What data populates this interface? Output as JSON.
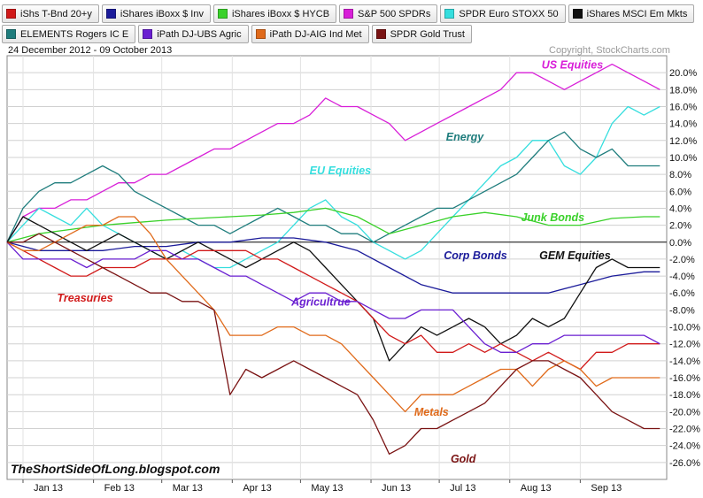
{
  "legend": [
    {
      "label": "iShs T-Bnd 20+y",
      "color": "#d11a1a"
    },
    {
      "label": "iShares iBoxx $ Inv",
      "color": "#1b1b9a"
    },
    {
      "label": "iShares iBoxx $ HYCB",
      "color": "#3ad12a"
    },
    {
      "label": "S&P 500 SPDRs",
      "color": "#d81fd8"
    },
    {
      "label": "SPDR Euro STOXX 50",
      "color": "#35dede"
    },
    {
      "label": "iShares MSCI Em Mkts",
      "color": "#111111"
    },
    {
      "label": "ELEMENTS Rogers IC E",
      "color": "#1f7d7d"
    },
    {
      "label": "iPath DJ-UBS Agric",
      "color": "#6a1fd1"
    },
    {
      "label": "iPath DJ-AIG Ind Met",
      "color": "#e06a1a"
    },
    {
      "label": "SPDR Gold Trust",
      "color": "#7a1313"
    }
  ],
  "date_range": "24 December 2012 - 09 October 2013",
  "copyright": "Copyright, StockCharts.com",
  "watermark": "TheShortSideOfLong.blogspot.com",
  "chart_data": {
    "type": "line",
    "x_tick_labels": [
      "Jan 13",
      "Feb 13",
      "Mar 13",
      "Apr 13",
      "May 13",
      "Jun 13",
      "Jul 13",
      "Aug 13",
      "Sep 13"
    ],
    "x_tick_positions": [
      7,
      38,
      68,
      99,
      129,
      160,
      190,
      221,
      252
    ],
    "x_range": [
      0,
      290
    ],
    "y_tick_labels": [
      "20.0%",
      "18.0%",
      "16.0%",
      "14.0%",
      "12.0%",
      "10.0%",
      "8.0%",
      "6.0%",
      "4.0%",
      "2.0%",
      "0.0%",
      "-2.0%",
      "-4.0%",
      "-6.0%",
      "-8.0%",
      "-10.0%",
      "-12.0%",
      "-14.0%",
      "-16.0%",
      "-18.0%",
      "-20.0%",
      "-22.0%",
      "-24.0%",
      "-26.0%"
    ],
    "ylim": [
      -28,
      22
    ],
    "grid": true,
    "annotations": [
      {
        "text": "US Equities",
        "color": "#d81fd8",
        "x": 235,
        "y": 20.5
      },
      {
        "text": "Energy",
        "color": "#1f7d7d",
        "x": 193,
        "y": 12
      },
      {
        "text": "EU Equities",
        "color": "#35dede",
        "x": 133,
        "y": 8
      },
      {
        "text": "Junk Bonds",
        "color": "#3ad12a",
        "x": 226,
        "y": 2.5
      },
      {
        "text": "Corp Bonds",
        "color": "#1b1b9a",
        "x": 192,
        "y": -2
      },
      {
        "text": "GEM Equities",
        "color": "#111111",
        "x": 234,
        "y": -2
      },
      {
        "text": "Treasuries",
        "color": "#d11a1a",
        "x": 22,
        "y": -7
      },
      {
        "text": "Agricultrue",
        "color": "#6a1fd1",
        "x": 125,
        "y": -7.5
      },
      {
        "text": "Metals",
        "color": "#e06a1a",
        "x": 179,
        "y": -20.5
      },
      {
        "text": "Gold",
        "color": "#7a1313",
        "x": 195,
        "y": -26
      }
    ],
    "series": [
      {
        "name": "S&P 500 SPDRs",
        "color": "#d81fd8",
        "x": [
          0,
          7,
          14,
          21,
          28,
          35,
          42,
          49,
          56,
          63,
          70,
          77,
          84,
          91,
          98,
          105,
          112,
          119,
          126,
          133,
          140,
          147,
          154,
          161,
          168,
          175,
          182,
          189,
          196,
          203,
          210,
          217,
          224,
          231,
          238,
          245,
          252,
          259,
          266,
          273,
          280,
          287
        ],
        "y": [
          0,
          3,
          4,
          4,
          5,
          5,
          6,
          7,
          7,
          8,
          8,
          9,
          10,
          11,
          11,
          12,
          13,
          14,
          14,
          15,
          17,
          16,
          16,
          15,
          14,
          12,
          13,
          14,
          15,
          16,
          17,
          18,
          20,
          20,
          19,
          18,
          19,
          20,
          21,
          20,
          19,
          18
        ]
      },
      {
        "name": "SPDR Euro STOXX 50",
        "color": "#35dede",
        "x": [
          0,
          7,
          14,
          21,
          28,
          35,
          42,
          49,
          56,
          63,
          70,
          77,
          84,
          91,
          98,
          105,
          112,
          119,
          126,
          133,
          140,
          147,
          154,
          161,
          168,
          175,
          182,
          189,
          196,
          203,
          210,
          217,
          224,
          231,
          238,
          245,
          252,
          259,
          266,
          273,
          280,
          287
        ],
        "y": [
          0,
          2,
          4,
          3,
          2,
          4,
          2,
          1,
          0,
          -1,
          -2,
          -1,
          -2,
          -3,
          -3,
          -2,
          -1,
          0,
          2,
          4,
          5,
          3,
          2,
          0,
          -1,
          -2,
          -1,
          1,
          3,
          5,
          7,
          9,
          10,
          12,
          12,
          9,
          8,
          10,
          14,
          16,
          15,
          16
        ]
      },
      {
        "name": "ELEMENTS Rogers IC E",
        "color": "#1f7d7d",
        "x": [
          0,
          7,
          14,
          21,
          28,
          35,
          42,
          49,
          56,
          63,
          70,
          77,
          84,
          91,
          98,
          105,
          112,
          119,
          126,
          133,
          140,
          147,
          154,
          161,
          168,
          175,
          182,
          189,
          196,
          203,
          210,
          217,
          224,
          231,
          238,
          245,
          252,
          259,
          266,
          273,
          280,
          287
        ],
        "y": [
          0,
          4,
          6,
          7,
          7,
          8,
          9,
          8,
          6,
          5,
          4,
          3,
          2,
          2,
          1,
          2,
          3,
          4,
          3,
          2,
          2,
          1,
          1,
          0,
          1,
          2,
          3,
          4,
          4,
          5,
          6,
          7,
          8,
          10,
          12,
          13,
          11,
          10,
          11,
          9,
          9,
          9
        ]
      },
      {
        "name": "iShares iBoxx $ HYCB",
        "color": "#3ad12a",
        "x": [
          0,
          14,
          28,
          42,
          56,
          70,
          84,
          98,
          112,
          126,
          140,
          154,
          168,
          182,
          196,
          210,
          224,
          238,
          252,
          266,
          280,
          287
        ],
        "y": [
          0,
          1,
          1.5,
          2,
          2.3,
          2.6,
          2.8,
          3,
          3.2,
          3.5,
          4,
          3,
          1,
          2,
          3,
          3.5,
          3,
          2,
          2,
          2.8,
          3,
          3
        ]
      },
      {
        "name": "iShares iBoxx $ Inv",
        "color": "#1b1b9a",
        "x": [
          0,
          14,
          28,
          42,
          56,
          70,
          84,
          98,
          112,
          126,
          140,
          154,
          168,
          182,
          196,
          210,
          224,
          238,
          252,
          266,
          280,
          287
        ],
        "y": [
          0,
          -1,
          -1,
          -1,
          -0.5,
          -0.5,
          0,
          0,
          0.5,
          0.5,
          0,
          -1,
          -3,
          -5,
          -6,
          -6,
          -6,
          -6,
          -5,
          -4,
          -3.5,
          -3.5
        ]
      },
      {
        "name": "iShares MSCI Em Mkts",
        "color": "#111111",
        "x": [
          0,
          7,
          14,
          21,
          28,
          35,
          42,
          49,
          56,
          63,
          70,
          77,
          84,
          91,
          98,
          105,
          112,
          119,
          126,
          133,
          140,
          147,
          154,
          161,
          168,
          175,
          182,
          189,
          196,
          203,
          210,
          217,
          224,
          231,
          238,
          245,
          252,
          259,
          266,
          273,
          280,
          287
        ],
        "y": [
          0,
          3,
          2,
          1,
          0,
          -1,
          0,
          1,
          0,
          -1,
          -2,
          -1,
          0,
          -1,
          -2,
          -3,
          -2,
          -1,
          0,
          -1,
          -3,
          -5,
          -7,
          -9,
          -14,
          -12,
          -10,
          -11,
          -10,
          -9,
          -10,
          -12,
          -11,
          -9,
          -10,
          -9,
          -6,
          -3,
          -2,
          -3,
          -3,
          -3
        ]
      },
      {
        "name": "iShs T-Bnd 20+y",
        "color": "#d11a1a",
        "x": [
          0,
          7,
          14,
          21,
          28,
          35,
          42,
          49,
          56,
          63,
          70,
          77,
          84,
          91,
          98,
          105,
          112,
          119,
          126,
          133,
          140,
          147,
          154,
          161,
          168,
          175,
          182,
          189,
          196,
          203,
          210,
          217,
          224,
          231,
          238,
          245,
          252,
          259,
          266,
          273,
          280,
          287
        ],
        "y": [
          0,
          -1,
          -2,
          -3,
          -4,
          -4,
          -3,
          -3,
          -3,
          -2,
          -2,
          -2,
          -1,
          -1,
          -1,
          -1,
          -2,
          -2,
          -3,
          -4,
          -5,
          -6,
          -7,
          -9,
          -11,
          -12,
          -11,
          -13,
          -13,
          -12,
          -13,
          -12,
          -13,
          -14,
          -13,
          -14,
          -15,
          -13,
          -13,
          -12,
          -12,
          -12
        ]
      },
      {
        "name": "iPath DJ-UBS Agric",
        "color": "#6a1fd1",
        "x": [
          0,
          7,
          14,
          21,
          28,
          35,
          42,
          49,
          56,
          63,
          70,
          77,
          84,
          91,
          98,
          105,
          112,
          119,
          126,
          133,
          140,
          147,
          154,
          161,
          168,
          175,
          182,
          189,
          196,
          203,
          210,
          217,
          224,
          231,
          238,
          245,
          252,
          259,
          266,
          273,
          280,
          287
        ],
        "y": [
          0,
          -2,
          -2,
          -2,
          -2,
          -3,
          -2,
          -2,
          -2,
          -1,
          -1,
          -2,
          -2,
          -3,
          -4,
          -4,
          -5,
          -6,
          -7,
          -6,
          -6,
          -7,
          -7,
          -8,
          -9,
          -9,
          -8,
          -8,
          -8,
          -10,
          -12,
          -13,
          -13,
          -12,
          -12,
          -11,
          -11,
          -11,
          -11,
          -11,
          -11,
          -12
        ]
      },
      {
        "name": "iPath DJ-AIG Ind Met",
        "color": "#e06a1a",
        "x": [
          0,
          7,
          14,
          21,
          28,
          35,
          42,
          49,
          56,
          63,
          70,
          77,
          84,
          91,
          98,
          105,
          112,
          119,
          126,
          133,
          140,
          147,
          154,
          161,
          168,
          175,
          182,
          189,
          196,
          203,
          210,
          217,
          224,
          231,
          238,
          245,
          252,
          259,
          266,
          273,
          280,
          287
        ],
        "y": [
          0,
          -1,
          -1,
          0,
          1,
          2,
          2,
          3,
          3,
          1,
          -2,
          -4,
          -6,
          -8,
          -11,
          -11,
          -11,
          -10,
          -10,
          -11,
          -11,
          -12,
          -14,
          -16,
          -18,
          -20,
          -18,
          -18,
          -18,
          -17,
          -16,
          -15,
          -15,
          -17,
          -15,
          -14,
          -15,
          -17,
          -16,
          -16,
          -16,
          -16
        ]
      },
      {
        "name": "SPDR Gold Trust",
        "color": "#7a1313",
        "x": [
          0,
          7,
          14,
          21,
          28,
          35,
          42,
          49,
          56,
          63,
          70,
          77,
          84,
          91,
          98,
          105,
          112,
          119,
          126,
          133,
          140,
          147,
          154,
          161,
          168,
          175,
          182,
          189,
          196,
          203,
          210,
          217,
          224,
          231,
          238,
          245,
          252,
          259,
          266,
          273,
          280,
          287
        ],
        "y": [
          0,
          0,
          1,
          0,
          -1,
          -2,
          -3,
          -4,
          -5,
          -6,
          -6,
          -7,
          -7,
          -8,
          -18,
          -15,
          -16,
          -15,
          -14,
          -15,
          -16,
          -17,
          -18,
          -21,
          -25,
          -24,
          -22,
          -22,
          -21,
          -20,
          -19,
          -17,
          -15,
          -14,
          -14,
          -15,
          -16,
          -18,
          -20,
          -21,
          -22,
          -22
        ]
      }
    ]
  }
}
